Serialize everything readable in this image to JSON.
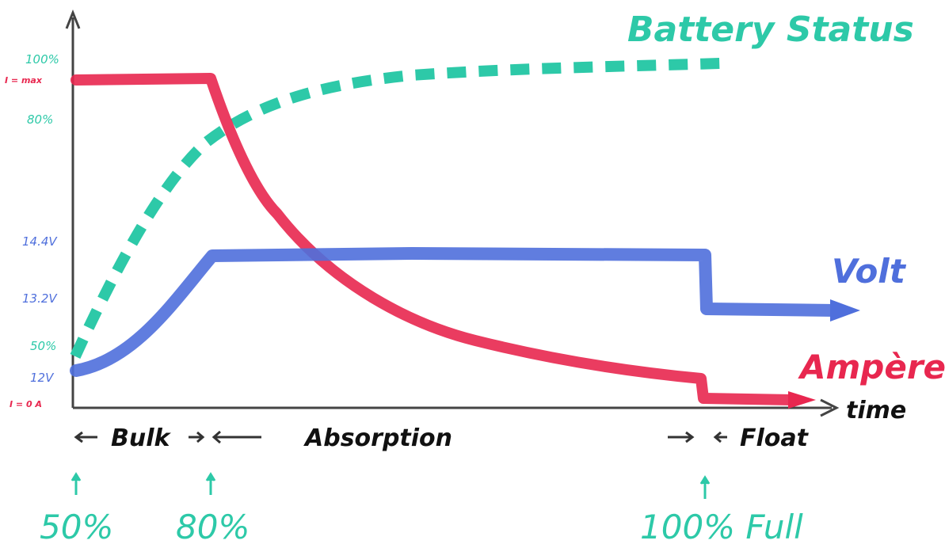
{
  "title": "Battery Status",
  "colors": {
    "battery": "#2dc9a8",
    "volt": "#4f6fdc",
    "ampere": "#e8274f",
    "axis": "#444444",
    "text": "#111111"
  },
  "y_labels": {
    "status_100": "100%",
    "i_max": "I = max",
    "status_80": "80%",
    "v_14_4": "14.4V",
    "v_13_2": "13.2V",
    "status_50": "50%",
    "v_12": "12V",
    "i_zero": "I = 0 A"
  },
  "x_label": "time",
  "series_labels": {
    "volt": "Volt",
    "ampere": "Ampère"
  },
  "phases": {
    "bulk": "Bulk",
    "absorption": "Absorption",
    "float": "Float"
  },
  "milestones": {
    "m50": "50%",
    "m80": "80%",
    "m100": "100% Full"
  }
}
